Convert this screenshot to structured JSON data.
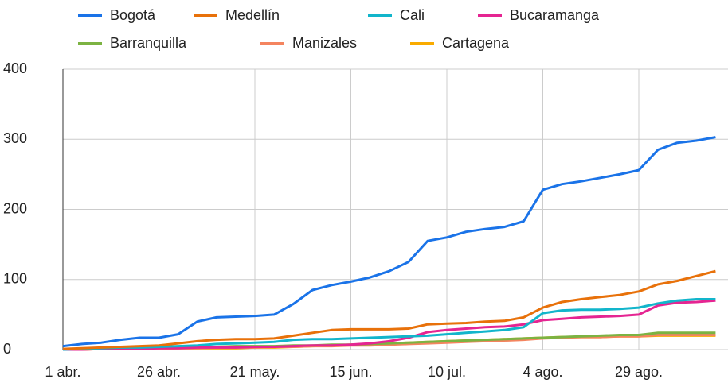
{
  "chart_data": {
    "type": "line",
    "categories": [
      "1 abr.",
      null,
      null,
      null,
      null,
      "26 abr.",
      null,
      null,
      null,
      null,
      "21 may.",
      null,
      null,
      null,
      null,
      "15 jun.",
      null,
      null,
      null,
      null,
      "10 jul.",
      null,
      null,
      null,
      null,
      "4 ago.",
      null,
      null,
      null,
      null,
      "29 ago.",
      null,
      null,
      null,
      null
    ],
    "series": [
      {
        "name": "Bogotá",
        "color": "#1a73e8",
        "values": [
          5,
          8,
          10,
          14,
          17,
          17,
          22,
          40,
          46,
          47,
          48,
          50,
          65,
          85,
          92,
          97,
          103,
          112,
          125,
          155,
          160,
          168,
          172,
          175,
          183,
          228,
          236,
          240,
          245,
          250,
          256,
          285,
          295,
          298,
          303
        ]
      },
      {
        "name": "Medellín",
        "color": "#e8710a",
        "values": [
          1,
          2,
          3,
          4,
          5,
          6,
          9,
          12,
          14,
          15,
          15,
          16,
          20,
          24,
          28,
          29,
          29,
          29,
          30,
          36,
          37,
          38,
          40,
          41,
          46,
          60,
          68,
          72,
          75,
          78,
          83,
          93,
          98,
          105,
          112
        ]
      },
      {
        "name": "Cali",
        "color": "#12b5cb",
        "values": [
          0,
          1,
          2,
          3,
          3,
          4,
          5,
          6,
          8,
          9,
          10,
          11,
          14,
          15,
          15,
          16,
          17,
          18,
          19,
          20,
          22,
          24,
          26,
          28,
          32,
          52,
          56,
          57,
          57,
          58,
          60,
          66,
          70,
          72,
          72
        ]
      },
      {
        "name": "Bucaramanga",
        "color": "#e52592",
        "values": [
          0,
          0,
          1,
          1,
          1,
          2,
          2,
          3,
          3,
          3,
          4,
          4,
          5,
          6,
          6,
          7,
          9,
          12,
          17,
          25,
          28,
          30,
          32,
          33,
          36,
          42,
          44,
          46,
          47,
          48,
          50,
          63,
          67,
          68,
          70
        ]
      },
      {
        "name": "Barranquilla",
        "color": "#7cb342",
        "values": [
          0,
          1,
          1,
          2,
          2,
          3,
          3,
          4,
          4,
          5,
          5,
          5,
          6,
          6,
          7,
          7,
          8,
          9,
          10,
          11,
          12,
          13,
          14,
          15,
          16,
          17,
          18,
          19,
          20,
          21,
          21,
          24,
          24,
          24,
          24
        ]
      },
      {
        "name": "Manizales",
        "color": "#f4845f",
        "values": [
          0,
          0,
          1,
          1,
          1,
          2,
          2,
          2,
          3,
          3,
          3,
          4,
          4,
          5,
          5,
          6,
          6,
          7,
          8,
          9,
          10,
          11,
          12,
          13,
          14,
          16,
          17,
          18,
          18,
          19,
          19,
          21,
          21,
          21,
          21
        ]
      },
      {
        "name": "Cartagena",
        "color": "#f9ab00",
        "values": [
          0,
          0,
          1,
          1,
          1,
          1,
          2,
          2,
          2,
          2,
          3,
          3,
          4,
          5,
          6,
          7,
          8,
          9,
          10,
          11,
          12,
          13,
          14,
          15,
          16,
          17,
          18,
          18,
          18,
          19,
          19,
          20,
          20,
          20,
          20
        ]
      }
    ],
    "ylim": [
      0,
      400
    ],
    "yticks": [
      0,
      100,
      200,
      300,
      400
    ],
    "grid": true
  }
}
